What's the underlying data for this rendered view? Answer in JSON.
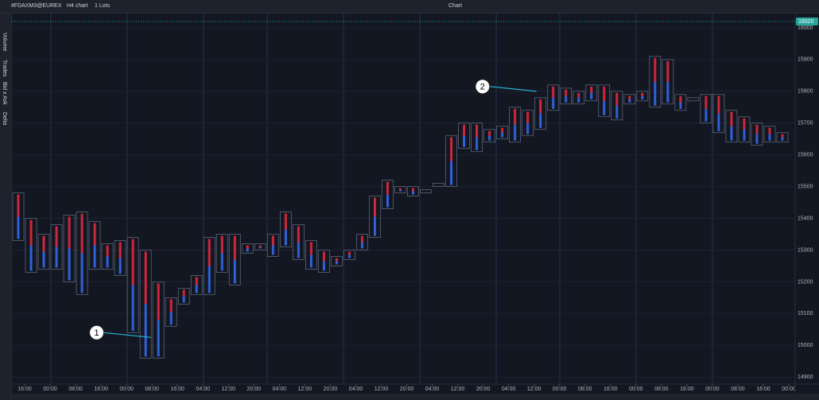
{
  "toolbar": {
    "symbol": "#FDAXM3@EUREX",
    "timeframe": "H4 chart",
    "lots": "1 Lots",
    "title": "Chart"
  },
  "sidebar": {
    "tabs": [
      "Volume",
      "Trades",
      "Bid x Ask",
      "Delta"
    ]
  },
  "chart_data": {
    "type": "box",
    "high": [
      15480,
      15400,
      15350,
      15380,
      15410,
      15420,
      15390,
      15320,
      15330,
      15340,
      15300,
      15200,
      15150,
      15180,
      15220,
      15340,
      15350,
      15350,
      15320,
      15320,
      15350,
      15420,
      15380,
      15330,
      15300,
      15280,
      15300,
      15350,
      15470,
      15520,
      15500,
      15500,
      15490,
      15510,
      15660,
      15700,
      15700,
      15680,
      15690,
      15750,
      15740,
      15780,
      15820,
      15810,
      15800,
      15820,
      15820,
      15800,
      15790,
      15800,
      15910,
      15900,
      15790,
      15780,
      15790,
      15790,
      15740,
      15720,
      15700,
      15690,
      15670
    ],
    "low": [
      15330,
      15230,
      15240,
      15240,
      15200,
      15160,
      15240,
      15240,
      15220,
      15040,
      14960,
      14960,
      15060,
      15130,
      15160,
      15160,
      15230,
      15190,
      15290,
      15300,
      15280,
      15310,
      15270,
      15240,
      15230,
      15250,
      15270,
      15300,
      15340,
      15430,
      15480,
      15470,
      15480,
      15500,
      15500,
      15620,
      15610,
      15640,
      15650,
      15640,
      15660,
      15680,
      15740,
      15760,
      15760,
      15770,
      15720,
      15710,
      15760,
      15770,
      15750,
      15760,
      15740,
      15770,
      15700,
      15670,
      15640,
      15640,
      15630,
      15640,
      15640
    ],
    "color": "#5d6579",
    "xlim": [
      -0.5,
      61
    ],
    "xticks": [
      {
        "value": 0.5,
        "label": "16:00"
      },
      {
        "value": 2.5,
        "label": "00:00"
      },
      {
        "value": 4.5,
        "label": "08:00"
      },
      {
        "value": 6.5,
        "label": "16:00"
      },
      {
        "value": 8.5,
        "label": "00:00"
      },
      {
        "value": 10.5,
        "label": "08:00"
      },
      {
        "value": 12.5,
        "label": "16:00"
      },
      {
        "value": 14.5,
        "label": "04:00"
      },
      {
        "value": 16.5,
        "label": "12:00"
      },
      {
        "value": 18.5,
        "label": "20:00"
      },
      {
        "value": 20.5,
        "label": "04:00"
      },
      {
        "value": 22.5,
        "label": "12:00"
      },
      {
        "value": 24.5,
        "label": "20:00"
      },
      {
        "value": 26.5,
        "label": "04:00"
      },
      {
        "value": 28.5,
        "label": "12:00"
      },
      {
        "value": 30.5,
        "label": "20:00"
      },
      {
        "value": 32.5,
        "label": "04:00"
      },
      {
        "value": 34.5,
        "label": "12:00"
      },
      {
        "value": 36.5,
        "label": "20:00"
      },
      {
        "value": 38.5,
        "label": "04:00"
      },
      {
        "value": 40.5,
        "label": "12:00"
      },
      {
        "value": 42.5,
        "label": "00:00"
      },
      {
        "value": 44.5,
        "label": "08:00"
      },
      {
        "value": 46.5,
        "label": "16:00"
      },
      {
        "value": 48.5,
        "label": "00:00"
      },
      {
        "value": 50.5,
        "label": "08:00"
      },
      {
        "value": 52.5,
        "label": "16:00"
      },
      {
        "value": 54.5,
        "label": "00:00"
      },
      {
        "value": 56.5,
        "label": "08:00"
      },
      {
        "value": 58.5,
        "label": "16:00"
      },
      {
        "value": 60.5,
        "label": "00:00"
      }
    ],
    "ylim": [
      14878,
      16045
    ],
    "yticks": [
      14900,
      15000,
      15100,
      15200,
      15300,
      15400,
      15500,
      15600,
      15700,
      15800,
      15900,
      16000
    ],
    "last_price": 16020,
    "annotations": [
      {
        "label": "1",
        "x": 10.4,
        "y": 15025
      },
      {
        "label": "2",
        "x": 40.7,
        "y": 15800
      }
    ]
  }
}
